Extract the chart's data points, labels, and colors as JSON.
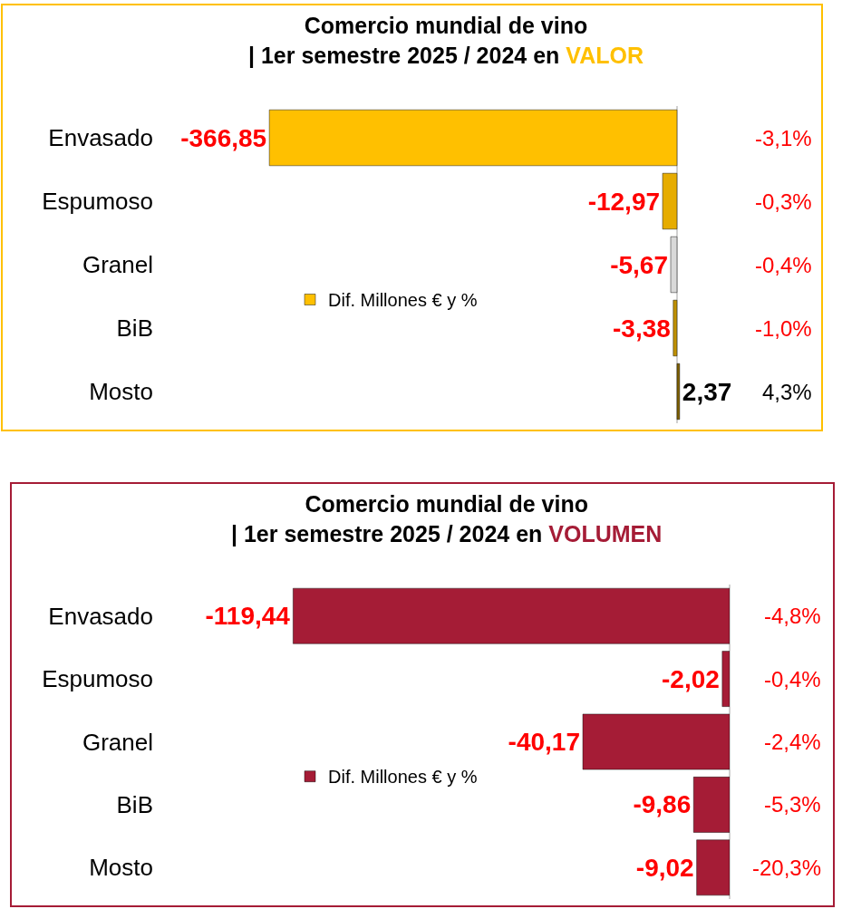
{
  "chart_data": [
    {
      "type": "bar",
      "orientation": "horizontal",
      "title": "Comercio mundial de vino\n| 1er semestre 2025 / 2024 en VALOR",
      "categories": [
        "Envasado",
        "Espumoso",
        "Granel",
        "BiB",
        "Mosto"
      ],
      "series": [
        {
          "name": "Dif. Millones € y %",
          "color": "#ffc000",
          "colors": [
            "#ffc000",
            "#e6ac00",
            "#d9d9d9",
            "#bf9000",
            "#7f6000"
          ],
          "values": [
            -366.85,
            -12.97,
            -5.67,
            -3.38,
            2.37
          ],
          "value_labels": [
            "-366,85",
            "-12,97",
            "-5,67",
            "-3,38",
            "2,37"
          ]
        }
      ],
      "annotations": [
        "-3,1%",
        "-0,3%",
        "-0,4%",
        "-1,0%",
        "4,3%"
      ],
      "tick_labels": "y",
      "legend": "left"
    },
    {
      "type": "bar",
      "orientation": "horizontal",
      "title": "Comercio mundial de vino\n| 1er semestre 2025 / 2024 en VOLUMEN",
      "categories": [
        "Envasado",
        "Espumoso",
        "Granel",
        "BiB",
        "Mosto"
      ],
      "series": [
        {
          "name": "Dif. Millones € y %",
          "color": "#a51c36",
          "values": [
            -119.44,
            -2.02,
            -40.17,
            -9.86,
            -9.02
          ],
          "value_labels": [
            "-119,44",
            "-2,02",
            "-40,17",
            "-9,86",
            "-9,02"
          ]
        }
      ],
      "annotations": [
        "-4,8%",
        "-0,4%",
        "-2,4%",
        "-5,3%",
        "-20,3%"
      ],
      "tick_labels": "y",
      "legend": "left"
    }
  ]
}
